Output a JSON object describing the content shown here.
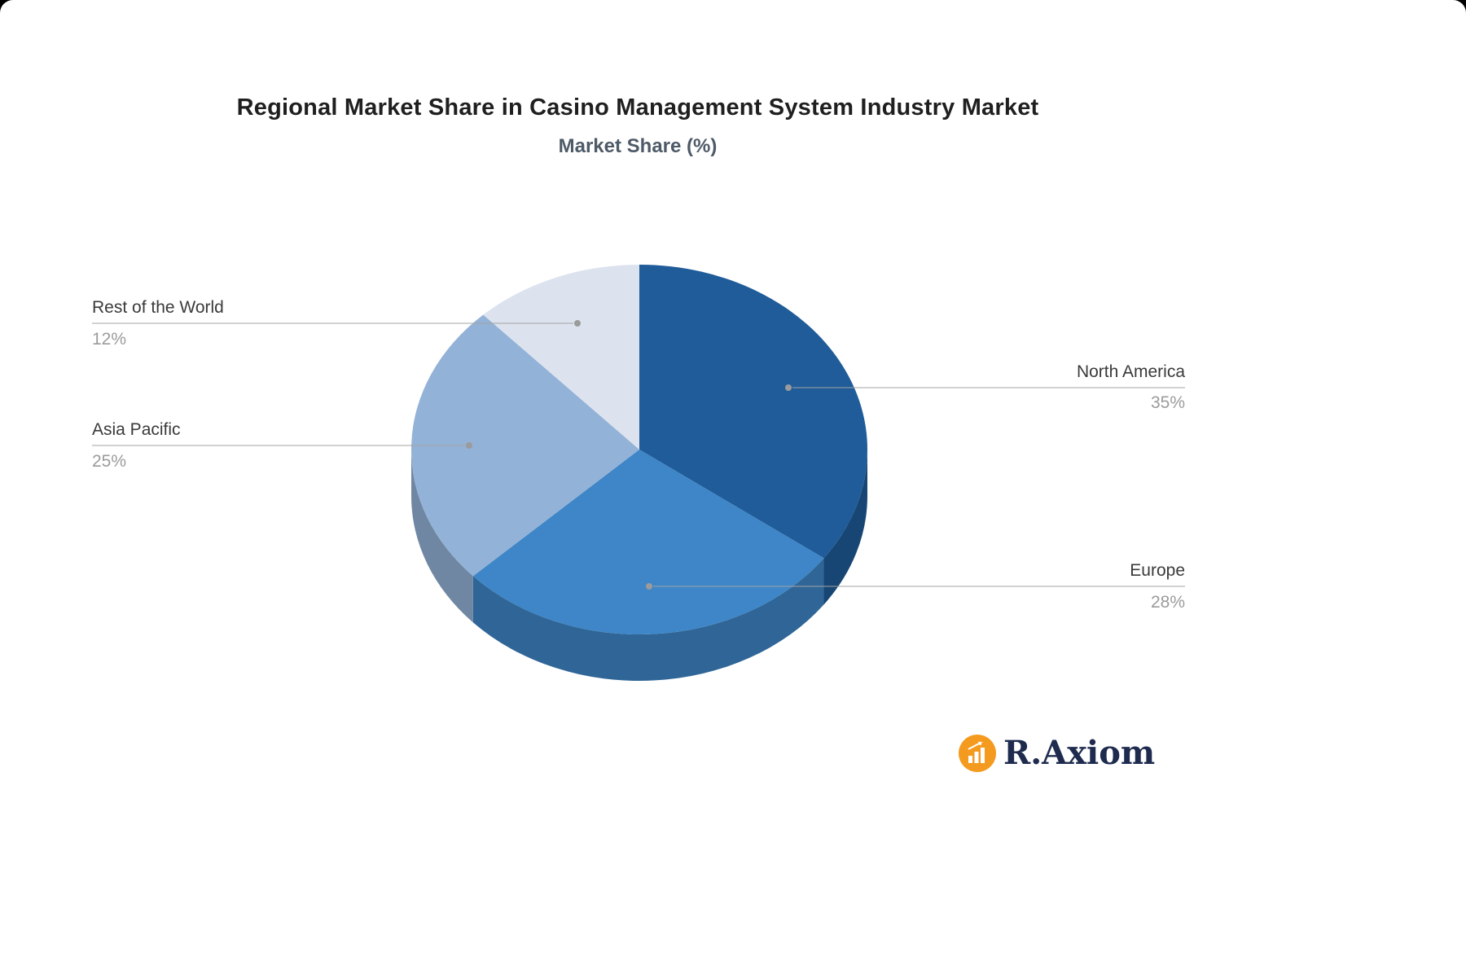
{
  "title": "Regional Market Share in Casino Management System Industry Market",
  "subtitle": "Market Share (%)",
  "chart_data": {
    "type": "pie",
    "style": "3d-pie",
    "title": "Regional Market Share in Casino Management System Industry Market",
    "subtitle": "Market Share (%)",
    "unit": "%",
    "labels": [
      "North America",
      "Europe",
      "Asia Pacific",
      "Rest of the World"
    ],
    "values": [
      35,
      28,
      25,
      12
    ],
    "colors": [
      "#1f5c99",
      "#3e86c7",
      "#93b2d7",
      "#dce3ee"
    ],
    "start_angle": "top",
    "direction": "clockwise",
    "legend_position": "none",
    "label_position": "outside-with-leader-lines"
  },
  "slices": [
    {
      "label": "North America",
      "percent": "35%"
    },
    {
      "label": "Europe",
      "percent": "28%"
    },
    {
      "label": "Asia Pacific",
      "percent": "25%"
    },
    {
      "label": "Rest of the World",
      "percent": "12%"
    }
  ],
  "logo": {
    "text": "R.Axiom",
    "icon": "bar-chart-icon",
    "accent_color": "#f49b1f",
    "text_color": "#1e2b4e"
  }
}
